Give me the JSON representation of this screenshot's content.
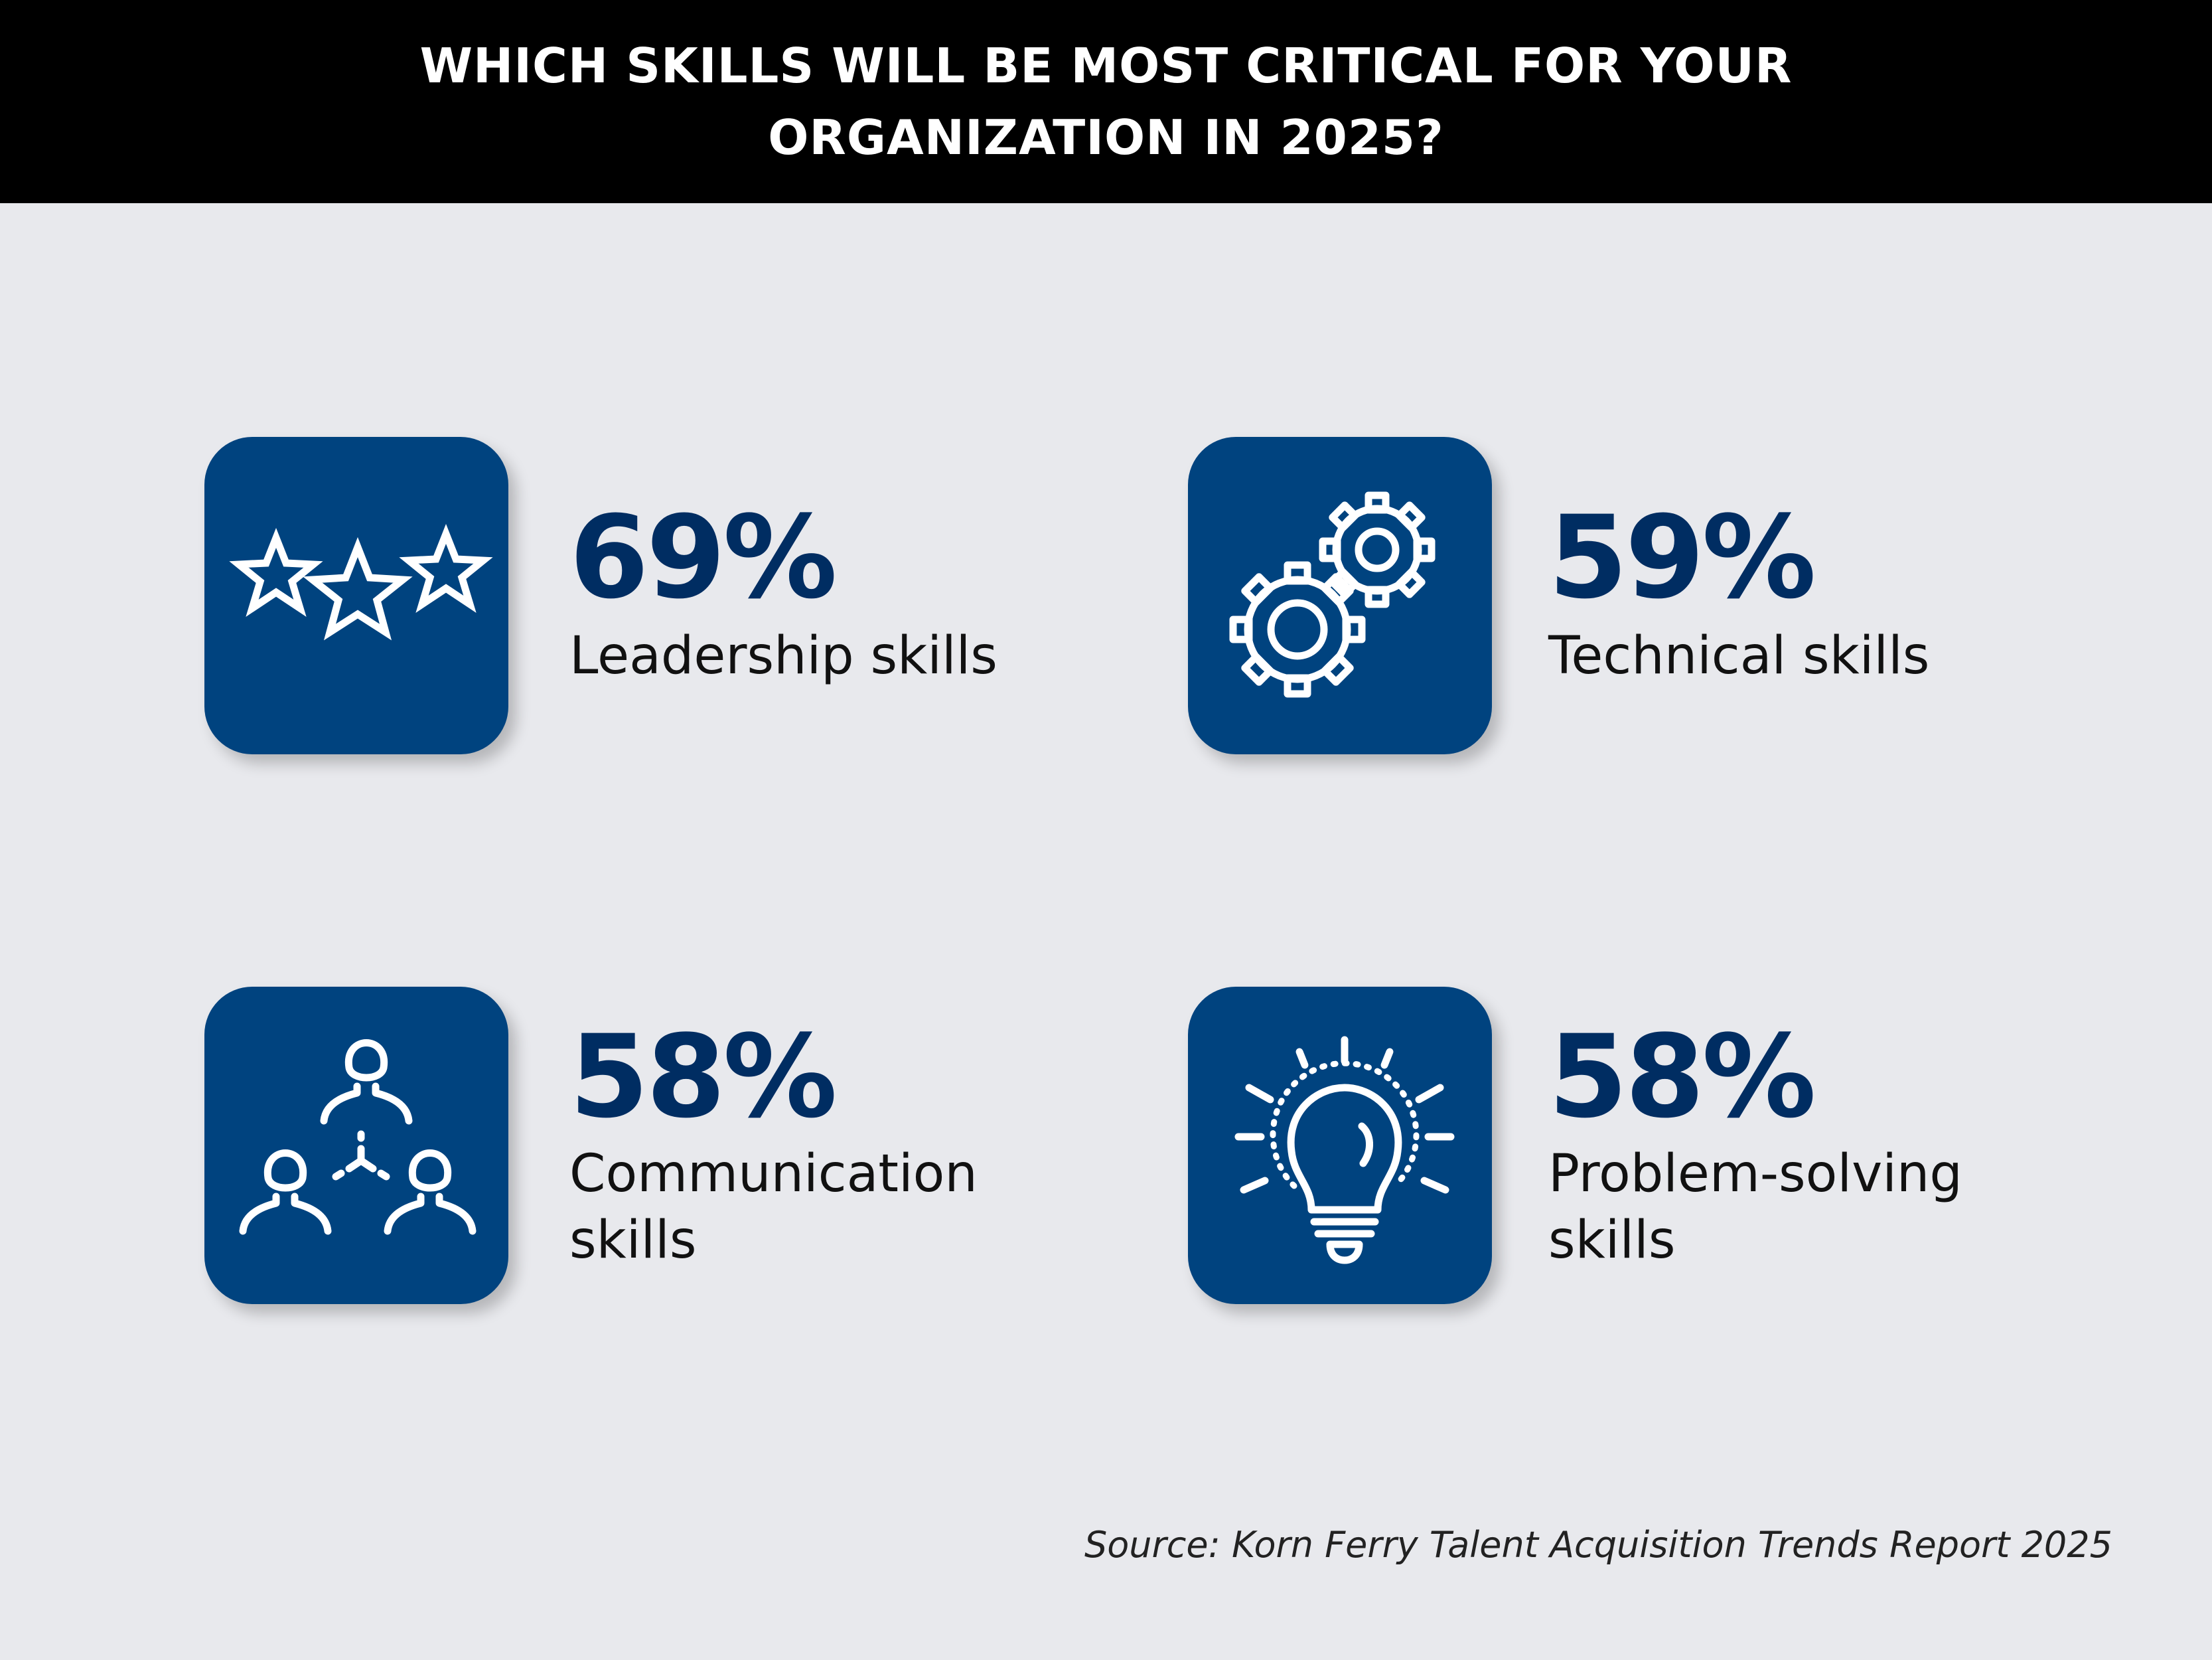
{
  "header": {
    "line1": "WHICH SKILLS WILL BE MOST CRITICAL FOR YOUR",
    "line2": "ORGANIZATION IN 2025?"
  },
  "skills": [
    {
      "percent": "69%",
      "value": 69,
      "label": "Leadership skills",
      "icon": "stars-icon"
    },
    {
      "percent": "59%",
      "value": 59,
      "label": "Technical skills",
      "icon": "gears-icon"
    },
    {
      "percent": "58%",
      "value": 58,
      "label": "Communication skills",
      "icon": "people-network-icon"
    },
    {
      "percent": "58%",
      "value": 58,
      "label": "Problem-solving skills",
      "icon": "lightbulb-icon"
    }
  ],
  "source": "Source: Korn Ferry Talent Acquisition Trends Report 2025",
  "colors": {
    "background": "#e8e9ed",
    "header": "#000000",
    "tile": "#00437f",
    "percent_text": "#002d62"
  }
}
